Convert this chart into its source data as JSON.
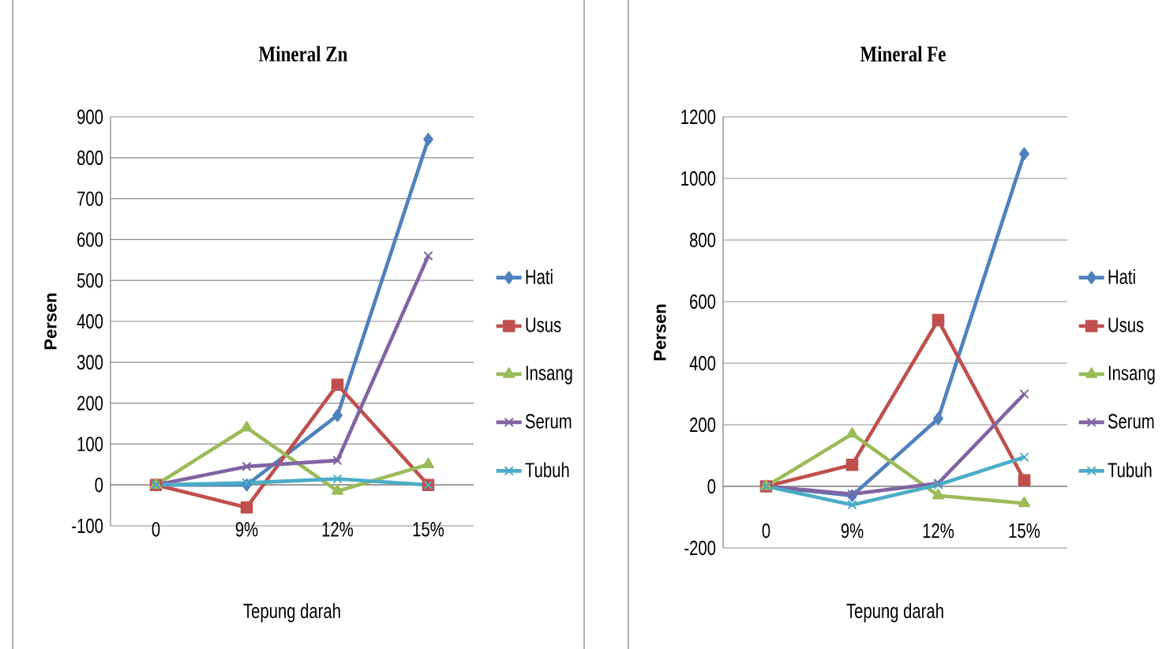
{
  "chart_data": [
    {
      "type": "line",
      "title": "Mineral Zn",
      "xlabel": "Tepung darah",
      "ylabel": "Persen",
      "categories": [
        "0",
        "9%",
        "12%",
        "15%"
      ],
      "ylim": [
        -100,
        900
      ],
      "yticks": [
        -100,
        0,
        100,
        200,
        300,
        400,
        500,
        600,
        700,
        800,
        900
      ],
      "grid": "y",
      "legend": "right",
      "line_style": "solid",
      "series": [
        {
          "name": "Hati",
          "color": "#4f81bd",
          "marker": "diamond",
          "values": [
            0,
            0,
            170,
            845
          ]
        },
        {
          "name": "Usus",
          "color": "#c0504d",
          "marker": "square",
          "values": [
            0,
            -55,
            245,
            0
          ]
        },
        {
          "name": "Insang",
          "color": "#9bbb59",
          "marker": "triangle",
          "values": [
            0,
            140,
            -15,
            50
          ]
        },
        {
          "name": "Serum",
          "color": "#8064a2",
          "marker": "cross",
          "values": [
            0,
            45,
            60,
            560
          ]
        },
        {
          "name": "Tubuh",
          "color": "#4bacc6",
          "marker": "cross",
          "values": [
            0,
            5,
            15,
            0
          ]
        }
      ]
    },
    {
      "type": "line",
      "title": "Mineral Fe",
      "xlabel": "Tepung darah",
      "ylabel": "Persen",
      "categories": [
        "0",
        "9%",
        "12%",
        "15%"
      ],
      "ylim": [
        -200,
        1200
      ],
      "yticks": [
        -200,
        0,
        200,
        400,
        600,
        800,
        1000,
        1200
      ],
      "grid": "y",
      "legend": "right",
      "line_style": "solid",
      "series": [
        {
          "name": "Hati",
          "color": "#4f81bd",
          "marker": "diamond",
          "values": [
            0,
            -30,
            220,
            1080
          ]
        },
        {
          "name": "Usus",
          "color": "#c0504d",
          "marker": "square",
          "values": [
            0,
            70,
            540,
            20
          ]
        },
        {
          "name": "Insang",
          "color": "#9bbb59",
          "marker": "triangle",
          "values": [
            0,
            170,
            -30,
            -55
          ]
        },
        {
          "name": "Serum",
          "color": "#8064a2",
          "marker": "cross",
          "values": [
            0,
            -25,
            10,
            300
          ]
        },
        {
          "name": "Tubuh",
          "color": "#4bacc6",
          "marker": "cross",
          "values": [
            0,
            -60,
            5,
            95
          ]
        }
      ]
    }
  ]
}
